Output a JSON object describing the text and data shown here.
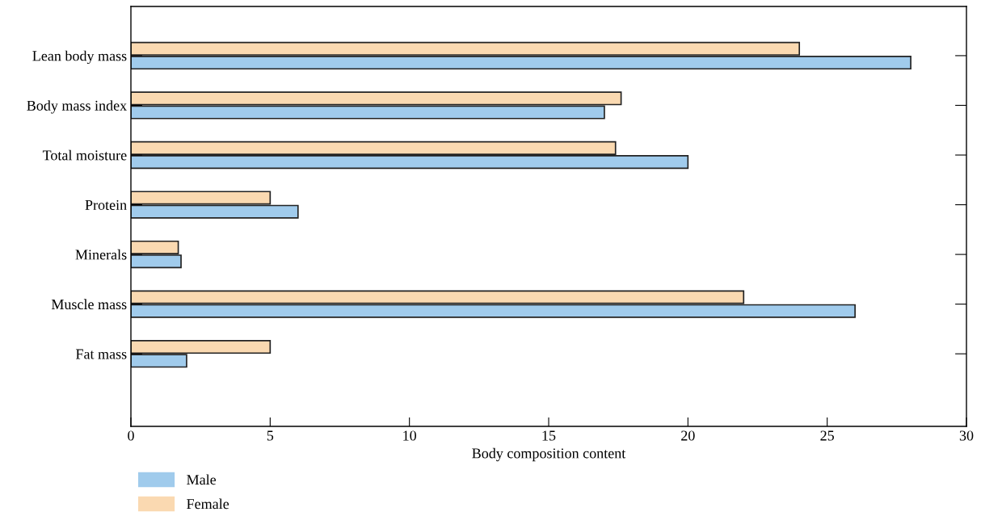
{
  "chart_data": {
    "type": "bar",
    "orientation": "horizontal",
    "xlabel": "Body composition content",
    "categories": [
      "Lean body mass",
      "Body mass index",
      "Total moisture",
      "Protein",
      "Minerals",
      "Muscle mass",
      "Fat mass"
    ],
    "series": [
      {
        "name": "Male",
        "color": "#a0cbec",
        "values": [
          28,
          17,
          20,
          6,
          1.8,
          26,
          2
        ]
      },
      {
        "name": "Female",
        "color": "#fad9b1",
        "values": [
          24,
          17.6,
          17.4,
          5,
          1.7,
          22,
          5
        ]
      }
    ],
    "xlim": [
      0,
      30
    ],
    "xticks": [
      0,
      5,
      10,
      15,
      20,
      25,
      30
    ],
    "grid": false,
    "legend": "bottom left"
  }
}
